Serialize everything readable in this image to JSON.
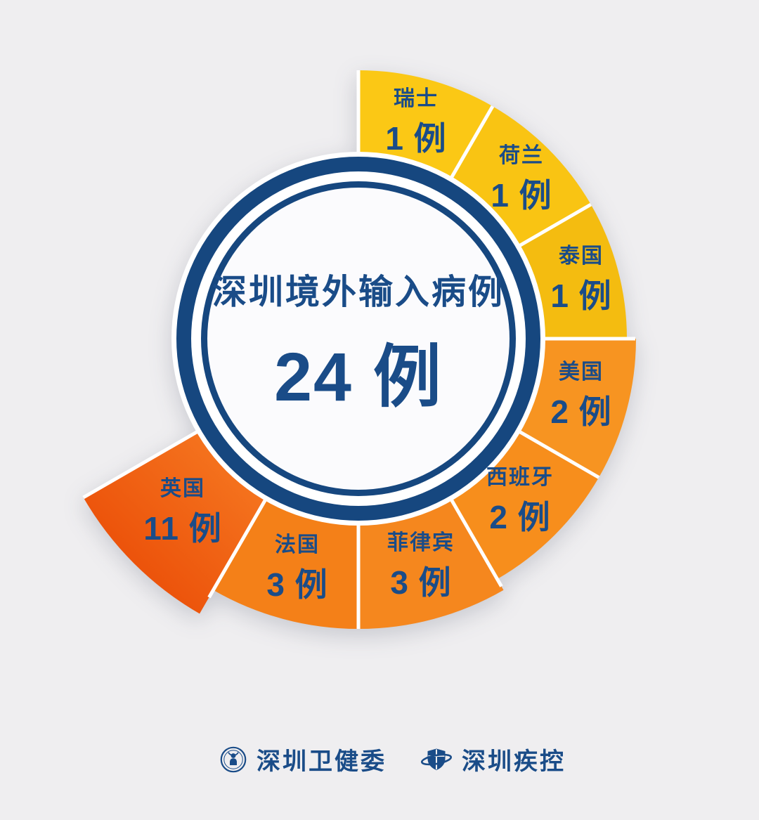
{
  "chart_data": {
    "type": "pie",
    "variant": "nightingale-rose",
    "title": "深圳境外输入病例",
    "total": 24,
    "total_label": "24 例",
    "unit": "例",
    "start_angle_deg": 0,
    "segment_angle_deg": 30,
    "direction": "clockwise-from-top",
    "legend_position": "on-segment",
    "segments": [
      {
        "id": "switzerland",
        "country": "瑞士",
        "cases": 1,
        "count_label": "1 例",
        "color": "#FBC815",
        "outer_radius": 382
      },
      {
        "id": "netherlands",
        "country": "荷兰",
        "cases": 1,
        "count_label": "1 例",
        "color": "#F9C413",
        "outer_radius": 382
      },
      {
        "id": "thailand",
        "country": "泰国",
        "cases": 1,
        "count_label": "1 例",
        "color": "#F4BC10",
        "outer_radius": 382
      },
      {
        "id": "usa",
        "country": "美国",
        "cases": 2,
        "count_label": "2 例",
        "color": "#F79421",
        "outer_radius": 395
      },
      {
        "id": "spain",
        "country": "西班牙",
        "cases": 2,
        "count_label": "2 例",
        "color": "#F78E1C",
        "outer_radius": 395
      },
      {
        "id": "philippines",
        "country": "菲律宾",
        "cases": 3,
        "count_label": "3 例",
        "color": "#F5871E",
        "outer_radius": 413
      },
      {
        "id": "france",
        "country": "法国",
        "cases": 3,
        "count_label": "3 例",
        "color": "#F48018",
        "outer_radius": 413
      },
      {
        "id": "uk",
        "country": "英国",
        "cases": 11,
        "count_label": "11 例",
        "color": "#F0600F",
        "outer_radius": 452,
        "gradient": [
          "#F5751F",
          "#EC530B"
        ]
      }
    ]
  },
  "footer": {
    "org1": "深圳卫健委",
    "org2": "深圳疾控"
  },
  "colors": {
    "background": "#EFEEF0",
    "ring_blue": "#16477F",
    "text_blue": "#1A4C88",
    "divider_white": "#FFFFFF",
    "inner_face": "#FBFBFD"
  }
}
